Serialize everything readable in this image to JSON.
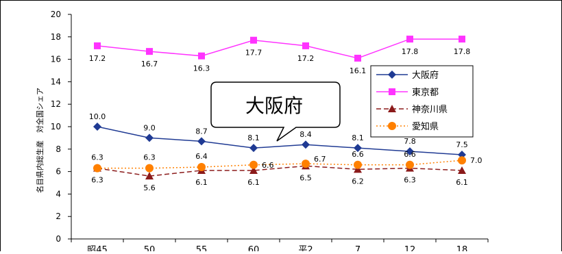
{
  "chart_data": {
    "type": "line",
    "ylabel": "名目県内総生産　対全国シェア",
    "ylim": [
      0,
      20
    ],
    "yticks": [
      0,
      2,
      4,
      6,
      8,
      10,
      12,
      14,
      16,
      18,
      20
    ],
    "categories": [
      "昭45",
      "50",
      "55",
      "60",
      "平2",
      "7",
      "12",
      "18"
    ],
    "legend_position": "right",
    "callout": "大阪府",
    "series": [
      {
        "name": "大阪府",
        "color": "#1f3a93",
        "marker": "diamond",
        "dash": "solid",
        "values": [
          10.0,
          9.0,
          8.7,
          8.1,
          8.4,
          8.1,
          7.8,
          7.5
        ],
        "labels": [
          "10.0",
          "9.0",
          "8.7",
          "8.1",
          "8.4",
          "8.1",
          "7.8",
          "7.5"
        ]
      },
      {
        "name": "東京都",
        "color": "#ff33ff",
        "marker": "square",
        "dash": "solid",
        "values": [
          17.2,
          16.7,
          16.3,
          17.7,
          17.2,
          16.1,
          17.8,
          17.8
        ],
        "labels": [
          "17.2",
          "16.7",
          "16.3",
          "17.7",
          "17.2",
          "16.1",
          "17.8",
          "17.8"
        ]
      },
      {
        "name": "神奈川県",
        "color": "#8b1a1a",
        "marker": "triangle",
        "dash": "dashed",
        "values": [
          6.3,
          5.6,
          6.1,
          6.1,
          6.5,
          6.2,
          6.3,
          6.1
        ],
        "labels": [
          "6.3",
          "5.6",
          "6.1",
          "6.1",
          "6.5",
          "6.2",
          "6.3",
          "6.1"
        ]
      },
      {
        "name": "愛知県",
        "color": "#ff8000",
        "marker": "circle",
        "dash": "dotted",
        "values": [
          6.3,
          6.3,
          6.4,
          6.6,
          6.7,
          6.6,
          6.6,
          7.0
        ],
        "labels": [
          "6.3",
          "6.3",
          "6.4",
          "6.6",
          "6.7",
          "6.6",
          "6.6",
          "7.0"
        ]
      }
    ]
  }
}
